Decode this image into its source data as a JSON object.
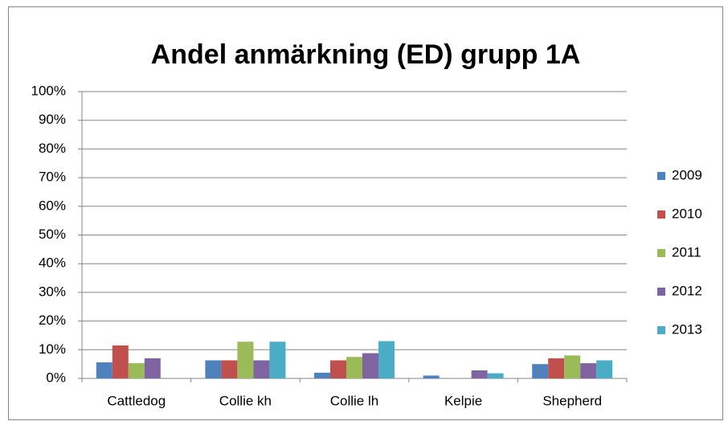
{
  "chart_data": {
    "type": "bar",
    "title": "Andel anmärkning (ED) grupp 1A",
    "categories": [
      "Cattledog",
      "Collie kh",
      "Collie lh",
      "Kelpie",
      "Shepherd"
    ],
    "series": [
      {
        "name": "2009",
        "color": "#4f81bd",
        "values": [
          5.6,
          6.3,
          2,
          1,
          5
        ]
      },
      {
        "name": "2010",
        "color": "#c0504d",
        "values": [
          11.5,
          6.3,
          6.3,
          0,
          7
        ]
      },
      {
        "name": "2011",
        "color": "#9bbb59",
        "values": [
          5.3,
          12.8,
          7.5,
          0,
          8
        ]
      },
      {
        "name": "2012",
        "color": "#8064a2",
        "values": [
          7,
          6.3,
          8.8,
          2.8,
          5.3
        ]
      },
      {
        "name": "2013",
        "color": "#4bacc6",
        "values": [
          0,
          12.8,
          13,
          1.8,
          6.3
        ]
      }
    ],
    "ylim": [
      0,
      100
    ],
    "yticks": [
      {
        "value": 0,
        "label": "0%"
      },
      {
        "value": 10,
        "label": "10%"
      },
      {
        "value": 20,
        "label": "20%"
      },
      {
        "value": 30,
        "label": "30%"
      },
      {
        "value": 40,
        "label": "40%"
      },
      {
        "value": 50,
        "label": "50%"
      },
      {
        "value": 60,
        "label": "60%"
      },
      {
        "value": 70,
        "label": "70%"
      },
      {
        "value": 80,
        "label": "80%"
      },
      {
        "value": 90,
        "label": "90%"
      },
      {
        "value": 100,
        "label": "100%"
      }
    ],
    "grid": true,
    "legend": "right"
  }
}
